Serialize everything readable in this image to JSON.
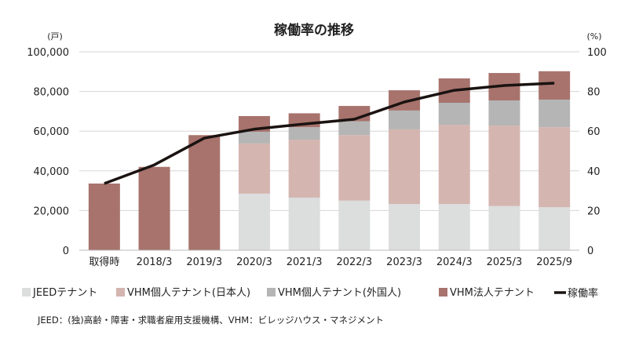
{
  "chart_data": {
    "type": "bar",
    "title": "稼働率の推移",
    "ylabel_left": "(戸)",
    "ylabel_right": "(%)",
    "ylim_left": [
      0,
      100000
    ],
    "ylim_right": [
      0,
      100
    ],
    "left_ticks": [
      "0",
      "20,000",
      "40,000",
      "60,000",
      "80,000",
      "100,000"
    ],
    "right_ticks": [
      "0",
      "20",
      "40",
      "60",
      "80",
      "100"
    ],
    "categories": [
      "取得時",
      "2018/3",
      "2019/3",
      "2020/3",
      "2021/3",
      "2022/3",
      "2023/3",
      "2024/3",
      "2025/3",
      "2025/9"
    ],
    "series": [
      {
        "name": "JEEDテナント",
        "color": "#dcdddd",
        "values": [
          0,
          0,
          0,
          28500,
          26500,
          25000,
          23300,
          23300,
          22300,
          21700
        ]
      },
      {
        "name": "VHM個人テナント(日本人)",
        "color": "#d4b5b0",
        "values": [
          0,
          0,
          0,
          25300,
          29200,
          33000,
          37600,
          39900,
          40500,
          40300
        ]
      },
      {
        "name": "VHM個人テナント(外国人)",
        "color": "#b4b5b4",
        "values": [
          0,
          0,
          0,
          5900,
          6300,
          7000,
          9500,
          11100,
          12700,
          13900
        ]
      },
      {
        "name": "VHM法人テナント",
        "color": "#a8736d",
        "values": [
          33600,
          42000,
          58000,
          7900,
          7000,
          7700,
          10200,
          12300,
          13800,
          14300
        ]
      }
    ],
    "line": {
      "name": "稼働率",
      "color": "#1a1311",
      "values": [
        33.6,
        43,
        56.5,
        61,
        63.6,
        66,
        74.7,
        80.6,
        83,
        84.2
      ]
    },
    "grid": true,
    "legend": "bottom",
    "footnote": "JEED：(独)高齢・障害・求職者雇用支援機構、VHM：ビレッジハウス・マネジメント"
  }
}
